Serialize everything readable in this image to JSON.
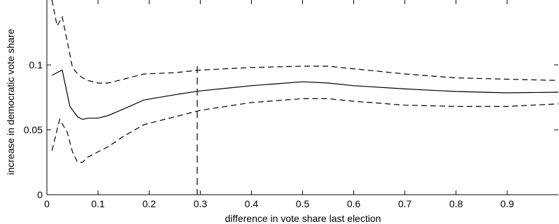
{
  "chart_data": {
    "type": "line",
    "title": "",
    "xlabel": "difference in vote share last election",
    "ylabel": "increase in democratic vote share",
    "xlim": [
      0,
      1
    ],
    "ylim": [
      0,
      0.15
    ],
    "xticks": [
      0,
      0.1,
      0.2,
      0.3,
      0.4,
      0.5,
      0.6,
      0.7,
      0.8,
      0.9
    ],
    "xtick_labels": [
      "0",
      "0.1",
      "0.2",
      "0.3",
      "0.4",
      "0.5",
      "0.6",
      "0.7",
      "0.8",
      "0.9"
    ],
    "yticks": [
      0,
      0.05,
      0.1
    ],
    "ytick_labels": [
      "0",
      "0.05",
      "0.1"
    ],
    "grid": false,
    "legend": "none",
    "reference_line": {
      "x": 0.294,
      "style": "dashed",
      "color": "#000000"
    },
    "series": [
      {
        "role": "estimate",
        "style": "solid",
        "color": "#000000",
        "x": [
          0.01,
          0.03,
          0.045,
          0.06,
          0.07,
          0.08,
          0.09,
          0.1,
          0.12,
          0.15,
          0.19,
          0.25,
          0.3,
          0.35,
          0.4,
          0.45,
          0.5,
          0.55,
          0.6,
          0.7,
          0.8,
          0.9,
          1.0
        ],
        "values": [
          0.092,
          0.096,
          0.068,
          0.06,
          0.058,
          0.059,
          0.059,
          0.059,
          0.061,
          0.066,
          0.073,
          0.077,
          0.08,
          0.082,
          0.084,
          0.0855,
          0.087,
          0.086,
          0.084,
          0.0815,
          0.0795,
          0.0785,
          0.079
        ]
      },
      {
        "role": "upper-bound",
        "style": "dashed",
        "color": "#000000",
        "x": [
          0.01,
          0.02,
          0.03,
          0.04,
          0.05,
          0.06,
          0.07,
          0.08,
          0.1,
          0.12,
          0.15,
          0.19,
          0.25,
          0.3,
          0.4,
          0.5,
          0.55,
          0.6,
          0.7,
          0.8,
          0.9,
          1.0
        ],
        "values": [
          0.15,
          0.13,
          0.137,
          0.118,
          0.098,
          0.093,
          0.09,
          0.088,
          0.086,
          0.086,
          0.089,
          0.093,
          0.094,
          0.096,
          0.098,
          0.099,
          0.099,
          0.097,
          0.093,
          0.09,
          0.089,
          0.088
        ]
      },
      {
        "role": "lower-bound",
        "style": "dashed",
        "color": "#000000",
        "x": [
          0.01,
          0.025,
          0.04,
          0.05,
          0.06,
          0.07,
          0.08,
          0.1,
          0.12,
          0.15,
          0.19,
          0.25,
          0.3,
          0.35,
          0.4,
          0.5,
          0.55,
          0.6,
          0.7,
          0.8,
          0.9,
          1.0
        ],
        "values": [
          0.034,
          0.058,
          0.048,
          0.033,
          0.025,
          0.025,
          0.029,
          0.033,
          0.037,
          0.045,
          0.054,
          0.06,
          0.065,
          0.068,
          0.071,
          0.074,
          0.074,
          0.072,
          0.069,
          0.068,
          0.068,
          0.07
        ]
      }
    ]
  }
}
